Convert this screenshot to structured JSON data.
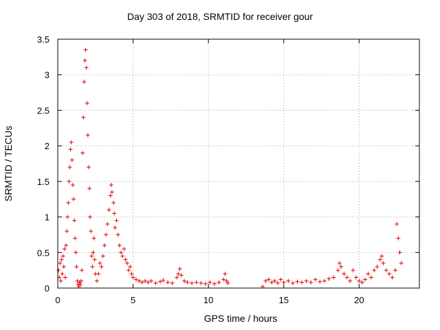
{
  "chart_data": {
    "type": "scatter",
    "title": "Day 303 of 2018, SRMTID for receiver gour",
    "xlabel": "GPS time / hours",
    "ylabel": "SRMTID / TECUs",
    "xlim": [
      0,
      24
    ],
    "ylim": [
      0,
      3.5
    ],
    "x_ticks": [
      0,
      5,
      10,
      15,
      20
    ],
    "y_ticks": [
      0,
      0.5,
      1,
      1.5,
      2,
      2.5,
      3,
      3.5
    ],
    "y_tick_labels": [
      "0",
      "0.5",
      "1",
      "1.5",
      "2",
      "2.5",
      "3",
      "3.5"
    ],
    "grid": true,
    "marker": "+",
    "marker_color": "#e00000",
    "series": [
      {
        "name": "gour",
        "points": [
          [
            0.05,
            0.25
          ],
          [
            0.1,
            0.15
          ],
          [
            0.15,
            0.35
          ],
          [
            0.2,
            0.1
          ],
          [
            0.25,
            0.4
          ],
          [
            0.3,
            0.2
          ],
          [
            0.35,
            0.45
          ],
          [
            0.4,
            0.3
          ],
          [
            0.45,
            0.55
          ],
          [
            0.5,
            0.15
          ],
          [
            0.55,
            0.6
          ],
          [
            0.6,
            0.8
          ],
          [
            0.65,
            1.0
          ],
          [
            0.7,
            1.2
          ],
          [
            0.75,
            1.5
          ],
          [
            0.8,
            1.7
          ],
          [
            0.85,
            1.95
          ],
          [
            0.9,
            2.05
          ],
          [
            0.95,
            1.8
          ],
          [
            1.0,
            1.45
          ],
          [
            1.05,
            1.25
          ],
          [
            1.1,
            0.95
          ],
          [
            1.15,
            0.7
          ],
          [
            1.2,
            0.5
          ],
          [
            1.25,
            0.3
          ],
          [
            1.3,
            0.1
          ],
          [
            1.35,
            0.05
          ],
          [
            1.4,
            0.02
          ],
          [
            1.45,
            0.08
          ],
          [
            1.5,
            0.05
          ],
          [
            1.55,
            0.1
          ],
          [
            1.6,
            0.25
          ],
          [
            1.65,
            1.9
          ],
          [
            1.7,
            2.4
          ],
          [
            1.75,
            2.9
          ],
          [
            1.8,
            3.2
          ],
          [
            1.85,
            3.35
          ],
          [
            1.9,
            3.1
          ],
          [
            1.95,
            2.6
          ],
          [
            2.0,
            2.15
          ],
          [
            2.05,
            1.7
          ],
          [
            2.1,
            1.4
          ],
          [
            2.15,
            1.0
          ],
          [
            2.2,
            0.8
          ],
          [
            2.25,
            0.45
          ],
          [
            2.3,
            0.3
          ],
          [
            2.35,
            0.5
          ],
          [
            2.4,
            0.7
          ],
          [
            2.45,
            0.4
          ],
          [
            2.5,
            0.2
          ],
          [
            2.6,
            0.1
          ],
          [
            2.7,
            0.2
          ],
          [
            2.8,
            0.35
          ],
          [
            2.9,
            0.3
          ],
          [
            3.0,
            0.45
          ],
          [
            3.1,
            0.6
          ],
          [
            3.2,
            0.75
          ],
          [
            3.3,
            0.9
          ],
          [
            3.4,
            1.1
          ],
          [
            3.5,
            1.3
          ],
          [
            3.55,
            1.45
          ],
          [
            3.6,
            1.35
          ],
          [
            3.7,
            1.2
          ],
          [
            3.75,
            1.05
          ],
          [
            3.8,
            0.85
          ],
          [
            3.9,
            0.95
          ],
          [
            4.0,
            0.75
          ],
          [
            4.1,
            0.6
          ],
          [
            4.2,
            0.5
          ],
          [
            4.3,
            0.45
          ],
          [
            4.4,
            0.55
          ],
          [
            4.5,
            0.4
          ],
          [
            4.6,
            0.35
          ],
          [
            4.7,
            0.25
          ],
          [
            4.8,
            0.3
          ],
          [
            4.9,
            0.2
          ],
          [
            5.0,
            0.15
          ],
          [
            5.2,
            0.12
          ],
          [
            5.4,
            0.1
          ],
          [
            5.6,
            0.08
          ],
          [
            5.8,
            0.1
          ],
          [
            6.0,
            0.08
          ],
          [
            6.2,
            0.1
          ],
          [
            6.5,
            0.07
          ],
          [
            6.8,
            0.09
          ],
          [
            7.0,
            0.11
          ],
          [
            7.3,
            0.08
          ],
          [
            7.6,
            0.07
          ],
          [
            7.9,
            0.15
          ],
          [
            8.0,
            0.2
          ],
          [
            8.1,
            0.27
          ],
          [
            8.2,
            0.18
          ],
          [
            8.4,
            0.1
          ],
          [
            8.6,
            0.08
          ],
          [
            8.9,
            0.07
          ],
          [
            9.2,
            0.08
          ],
          [
            9.5,
            0.07
          ],
          [
            9.8,
            0.06
          ],
          [
            10.1,
            0.08
          ],
          [
            10.4,
            0.06
          ],
          [
            10.7,
            0.08
          ],
          [
            11.0,
            0.12
          ],
          [
            11.1,
            0.2
          ],
          [
            11.2,
            0.1
          ],
          [
            11.3,
            0.07
          ],
          [
            13.6,
            0.02
          ],
          [
            13.8,
            0.1
          ],
          [
            14.0,
            0.12
          ],
          [
            14.2,
            0.08
          ],
          [
            14.4,
            0.1
          ],
          [
            14.6,
            0.07
          ],
          [
            14.8,
            0.12
          ],
          [
            15.0,
            0.08
          ],
          [
            15.3,
            0.1
          ],
          [
            15.6,
            0.07
          ],
          [
            15.9,
            0.09
          ],
          [
            16.2,
            0.08
          ],
          [
            16.5,
            0.1
          ],
          [
            16.8,
            0.08
          ],
          [
            17.1,
            0.12
          ],
          [
            17.4,
            0.09
          ],
          [
            17.7,
            0.1
          ],
          [
            18.0,
            0.13
          ],
          [
            18.3,
            0.15
          ],
          [
            18.6,
            0.25
          ],
          [
            18.7,
            0.35
          ],
          [
            18.8,
            0.3
          ],
          [
            19.0,
            0.2
          ],
          [
            19.2,
            0.15
          ],
          [
            19.4,
            0.1
          ],
          [
            19.6,
            0.25
          ],
          [
            19.8,
            0.15
          ],
          [
            20.0,
            0.1
          ],
          [
            20.2,
            0.08
          ],
          [
            20.4,
            0.12
          ],
          [
            20.6,
            0.2
          ],
          [
            20.8,
            0.15
          ],
          [
            21.0,
            0.25
          ],
          [
            21.2,
            0.3
          ],
          [
            21.4,
            0.4
          ],
          [
            21.5,
            0.45
          ],
          [
            21.6,
            0.35
          ],
          [
            21.8,
            0.25
          ],
          [
            22.0,
            0.2
          ],
          [
            22.2,
            0.15
          ],
          [
            22.4,
            0.25
          ],
          [
            22.5,
            0.9
          ],
          [
            22.6,
            0.7
          ],
          [
            22.7,
            0.5
          ],
          [
            22.8,
            0.35
          ]
        ]
      }
    ]
  }
}
